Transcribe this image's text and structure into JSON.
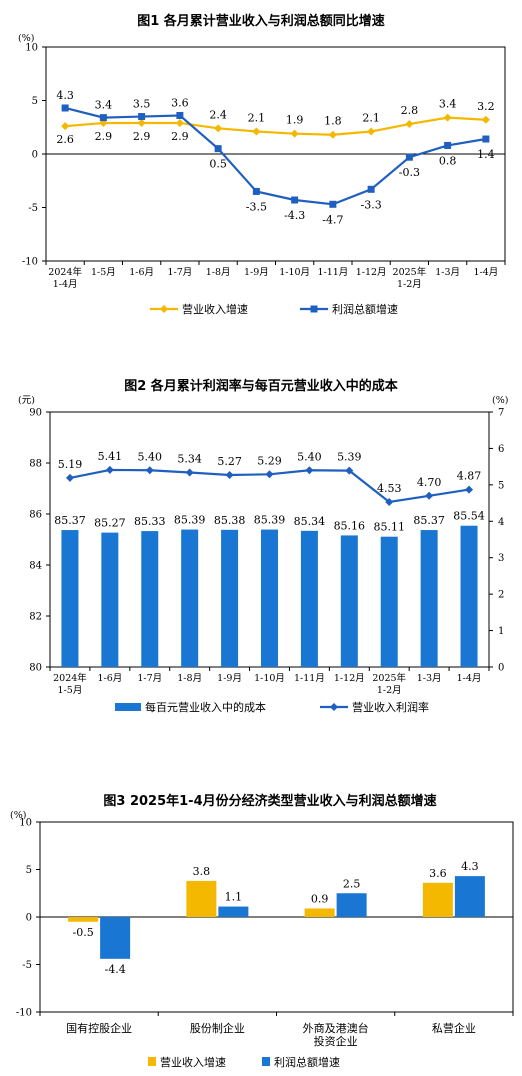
{
  "colors": {
    "orange": "#F5B800",
    "blue": "#1F5FBF",
    "bar_blue": "#1976D2",
    "axis": "#000000"
  },
  "chart_data": [
    {
      "type": "line",
      "title": "图1  各月累计营业收入与利润总额同比增速",
      "unit": "(%)",
      "ylim": [
        -10,
        10
      ],
      "yticks": [
        "10",
        "5",
        "0",
        "-5",
        "-10"
      ],
      "categories": [
        [
          "2024年",
          "1-4月"
        ],
        [
          "1-5月"
        ],
        [
          "1-6月"
        ],
        [
          "1-7月"
        ],
        [
          "1-8月"
        ],
        [
          "1-9月"
        ],
        [
          "1-10月"
        ],
        [
          "1-11月"
        ],
        [
          "1-12月"
        ],
        [
          "2025年",
          "1-2月"
        ],
        [
          "1-3月"
        ],
        [
          "1-4月"
        ]
      ],
      "series": [
        {
          "name": "营业收入增速",
          "values": [
            2.6,
            2.9,
            2.9,
            2.9,
            2.4,
            2.1,
            1.9,
            1.8,
            2.1,
            2.8,
            3.4,
            3.2
          ],
          "labels": [
            "2.6",
            "2.9",
            "2.9",
            "2.9",
            "2.4",
            "2.1",
            "1.9",
            "1.8",
            "2.1",
            "2.8",
            "3.4",
            "3.2"
          ]
        },
        {
          "name": "利润总额增速",
          "values": [
            4.3,
            3.4,
            3.5,
            3.6,
            0.5,
            -3.5,
            -4.3,
            -4.7,
            -3.3,
            -0.3,
            0.8,
            1.4
          ],
          "labels": [
            "4.3",
            "3.4",
            "3.5",
            "3.6",
            "0.5",
            "-3.5",
            "-4.3",
            "-4.7",
            "-3.3",
            "-0.3",
            "0.8",
            "1.4"
          ]
        }
      ],
      "legend": "bottom"
    },
    {
      "type": "bar+line",
      "title": "图2  各月累计利润率与每百元营业收入中的成本",
      "unit_left": "(元)",
      "unit_right": "(%)",
      "ylim_left": [
        80,
        90
      ],
      "ylim_right": [
        0,
        7
      ],
      "yticks_left": [
        "90",
        "88",
        "86",
        "84",
        "82",
        "80"
      ],
      "yticks_right": [
        "7",
        "6",
        "5",
        "4",
        "3",
        "2",
        "1",
        "0"
      ],
      "categories": [
        [
          "2024年",
          "1-5月"
        ],
        [
          "1-6月"
        ],
        [
          "1-7月"
        ],
        [
          "1-8月"
        ],
        [
          "1-9月"
        ],
        [
          "1-10月"
        ],
        [
          "1-11月"
        ],
        [
          "1-12月"
        ],
        [
          "2025年",
          "1-2月"
        ],
        [
          "1-3月"
        ],
        [
          "1-4月"
        ]
      ],
      "series": [
        {
          "name": "每百元营业收入中的成本",
          "kind": "bar",
          "axis": "left",
          "values": [
            85.37,
            85.27,
            85.33,
            85.39,
            85.38,
            85.39,
            85.34,
            85.16,
            85.11,
            85.37,
            85.54
          ],
          "labels": [
            "85.37",
            "85.27",
            "85.33",
            "85.39",
            "85.38",
            "85.39",
            "85.34",
            "85.16",
            "85.11",
            "85.37",
            "85.54"
          ]
        },
        {
          "name": "营业收入利润率",
          "kind": "line",
          "axis": "right",
          "values": [
            5.19,
            5.41,
            5.4,
            5.34,
            5.27,
            5.29,
            5.4,
            5.39,
            4.53,
            4.7,
            4.87
          ],
          "labels": [
            "5.19",
            "5.41",
            "5.40",
            "5.34",
            "5.27",
            "5.29",
            "5.40",
            "5.39",
            "4.53",
            "4.70",
            "4.87"
          ]
        }
      ],
      "legend": "bottom"
    },
    {
      "type": "bar",
      "title": "图3  2025年1-4月份分经济类型营业收入与利润总额增速",
      "unit": "(%)",
      "ylim": [
        -10,
        10
      ],
      "yticks": [
        "10",
        "5",
        "0",
        "-5",
        "-10"
      ],
      "categories": [
        [
          "国有控股企业"
        ],
        [
          "股份制企业"
        ],
        [
          "外商及港澳台",
          "投资企业"
        ],
        [
          "私营企业"
        ]
      ],
      "series": [
        {
          "name": "营业收入增速",
          "values": [
            -0.5,
            3.8,
            0.9,
            3.6
          ],
          "labels": [
            "-0.5",
            "3.8",
            "0.9",
            "3.6"
          ]
        },
        {
          "name": "利润总额增速",
          "values": [
            -4.4,
            1.1,
            2.5,
            4.3
          ],
          "labels": [
            "-4.4",
            "1.1",
            "2.5",
            "4.3"
          ]
        }
      ],
      "legend": "bottom"
    }
  ]
}
